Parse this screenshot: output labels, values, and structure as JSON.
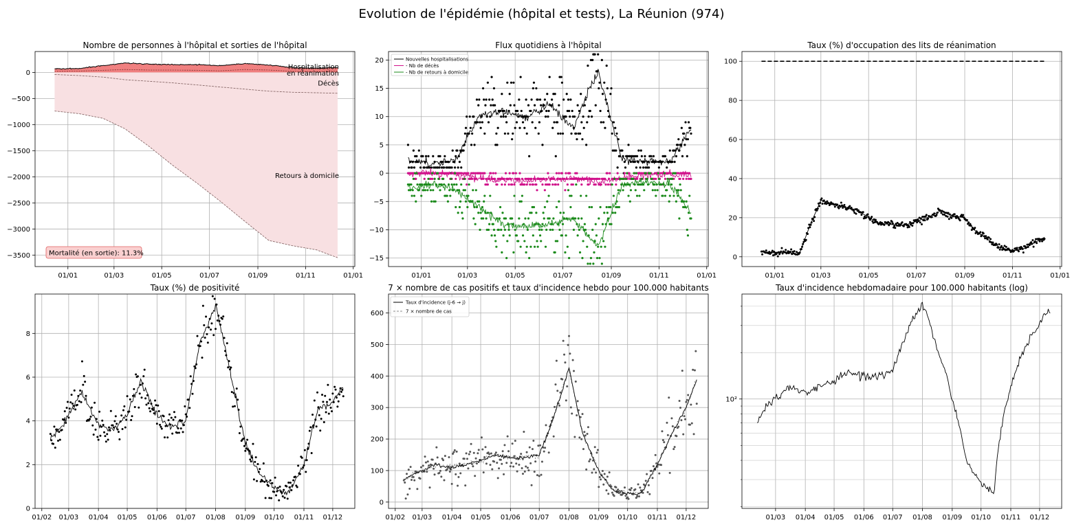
{
  "page": {
    "title": "Evolution de l'épidémie (hôpital et tests), La Réunion (974)"
  },
  "chart_data": [
    {
      "type": "area",
      "title": "Nombre de personnes à l'hôpital et sorties de l'hôpital",
      "x_ticks": [
        "01/01",
        "01/03",
        "01/05",
        "01/07",
        "01/09",
        "01/11",
        "01/01"
      ],
      "y_ticks": [
        0,
        -500,
        -1000,
        -1500,
        -2000,
        -2500,
        -3000,
        -3500
      ],
      "ylim": [
        -3720,
        400
      ],
      "annotations": [
        "Hospitalisation",
        "en réanimation",
        "Décès",
        "Retours à domicile"
      ],
      "annotation_box": "Mortalité (en sortie): 11.3%",
      "x": [
        "2020-12-15",
        "2021-01-15",
        "2021-02-15",
        "2021-03-15",
        "2021-04-15",
        "2021-05-15",
        "2021-06-15",
        "2021-07-15",
        "2021-08-15",
        "2021-09-15",
        "2021-10-15",
        "2021-11-15",
        "2021-12-12"
      ],
      "series": [
        {
          "name": "Hospitalisation",
          "values": [
            70,
            75,
            130,
            180,
            160,
            150,
            150,
            130,
            170,
            140,
            90,
            80,
            95
          ]
        },
        {
          "name": "en réanimation",
          "values": [
            20,
            25,
            40,
            55,
            45,
            45,
            40,
            30,
            55,
            45,
            20,
            15,
            25
          ]
        },
        {
          "name": "Décès",
          "values": [
            -40,
            -60,
            -90,
            -140,
            -170,
            -200,
            -240,
            -280,
            -320,
            -360,
            -380,
            -390,
            -400
          ]
        },
        {
          "name": "Retours à domicile",
          "values": [
            -740,
            -790,
            -880,
            -1080,
            -1420,
            -1780,
            -2120,
            -2470,
            -2850,
            -3220,
            -3320,
            -3400,
            -3550
          ]
        }
      ]
    },
    {
      "type": "scatter",
      "title": "Flux quotidiens à l'hôpital",
      "x_ticks": [
        "01/01",
        "01/03",
        "01/05",
        "01/07",
        "01/09",
        "01/11",
        "01/01"
      ],
      "y_ticks": [
        20,
        15,
        10,
        5,
        0,
        -5,
        -10,
        -15
      ],
      "ylim": [
        -16.5,
        21.5
      ],
      "legend": [
        "Nouvelles hospitalisations",
        "- Nb de décès",
        "- Nb de retours à domicile"
      ],
      "legend_position": "top-left",
      "x": [
        "2020-12-15",
        "2021-01-15",
        "2021-02-15",
        "2021-03-15",
        "2021-04-15",
        "2021-05-15",
        "2021-06-15",
        "2021-07-15",
        "2021-08-01",
        "2021-08-15",
        "2021-09-15",
        "2021-10-15",
        "2021-11-15",
        "2021-12-12"
      ],
      "series": [
        {
          "name": "Nouvelles hospitalisations",
          "values": [
            2.5,
            1.5,
            2.5,
            10,
            11,
            10,
            12,
            8,
            14,
            18,
            2.5,
            2,
            2,
            8
          ]
        },
        {
          "name": "- Nb de décès",
          "values": [
            0,
            0,
            -0.3,
            -0.8,
            -1.2,
            -1.5,
            -1.2,
            -1,
            -1.2,
            -1.5,
            -0.8,
            -0.3,
            -0.2,
            -0.5
          ]
        },
        {
          "name": "- Nb de retours à domicile",
          "values": [
            -2.5,
            -2,
            -3,
            -6,
            -9,
            -9.5,
            -9,
            -8,
            -11,
            -13,
            -2,
            -1.5,
            -2,
            -7
          ]
        }
      ]
    },
    {
      "type": "line",
      "title": "Taux (%) d'occupation des lits de réanimation",
      "x_ticks": [
        "01/01",
        "01/03",
        "01/05",
        "01/07",
        "01/09",
        "01/11",
        "01/01"
      ],
      "y_ticks": [
        100,
        80,
        60,
        40,
        20,
        0
      ],
      "ylim": [
        -5,
        105
      ],
      "reference_line": 100,
      "x": [
        "2020-12-15",
        "2021-01-01",
        "2021-01-15",
        "2021-02-01",
        "2021-02-15",
        "2021-03-01",
        "2021-03-15",
        "2021-04-15",
        "2021-05-15",
        "2021-06-15",
        "2021-07-15",
        "2021-08-01",
        "2021-08-15",
        "2021-09-01",
        "2021-09-15",
        "2021-10-15",
        "2021-11-01",
        "2021-11-15",
        "2021-12-12"
      ],
      "values": [
        2.5,
        2,
        2.5,
        1,
        16,
        29,
        27,
        24,
        17,
        16,
        20,
        23.5,
        21,
        20,
        13,
        5,
        3,
        4,
        10
      ]
    },
    {
      "type": "scatter",
      "title": "Taux (%) de positivité",
      "x_ticks": [
        "01/02",
        "01/03",
        "01/04",
        "01/05",
        "01/06",
        "01/07",
        "01/08",
        "01/09",
        "01/10",
        "01/11",
        "01/12"
      ],
      "y_ticks": [
        8,
        6,
        4,
        2,
        0
      ],
      "ylim": [
        0,
        9.8
      ],
      "x": [
        "2021-02-10",
        "2021-02-20",
        "2021-03-01",
        "2021-03-15",
        "2021-04-01",
        "2021-04-15",
        "2021-05-01",
        "2021-05-15",
        "2021-06-01",
        "2021-06-15",
        "2021-07-01",
        "2021-07-15",
        "2021-08-01",
        "2021-08-15",
        "2021-09-01",
        "2021-09-15",
        "2021-10-01",
        "2021-10-15",
        "2021-11-01",
        "2021-11-15",
        "2021-12-01",
        "2021-12-12"
      ],
      "values": [
        3.2,
        3.6,
        4.3,
        5.3,
        3.8,
        3.6,
        4.3,
        5.8,
        4.3,
        3.7,
        4.0,
        7.5,
        9.3,
        6.5,
        3.0,
        1.6,
        0.9,
        0.7,
        1.9,
        4.5,
        4.9,
        5.5
      ]
    },
    {
      "type": "scatter",
      "title": "7 × nombre de cas positifs et taux d'incidence hebdo pour 100.000 habitants",
      "x_ticks": [
        "01/02",
        "01/03",
        "01/04",
        "01/05",
        "01/06",
        "01/07",
        "01/08",
        "01/09",
        "01/10",
        "01/11",
        "01/12"
      ],
      "y_ticks": [
        600,
        500,
        400,
        300,
        200,
        100,
        0
      ],
      "ylim": [
        -20,
        660
      ],
      "legend": [
        "Taux d'incidence (j-6 → j)",
        "7 × nombre de cas"
      ],
      "legend_position": "top-left",
      "x": [
        "2021-02-10",
        "2021-02-20",
        "2021-03-01",
        "2021-03-15",
        "2021-04-01",
        "2021-04-15",
        "2021-05-01",
        "2021-05-15",
        "2021-06-01",
        "2021-06-15",
        "2021-07-01",
        "2021-07-15",
        "2021-08-01",
        "2021-08-15",
        "2021-09-01",
        "2021-09-15",
        "2021-10-01",
        "2021-10-15",
        "2021-11-01",
        "2021-11-15",
        "2021-12-01",
        "2021-12-12"
      ],
      "values": [
        70,
        90,
        100,
        120,
        110,
        120,
        130,
        150,
        140,
        140,
        150,
        260,
        425,
        220,
        100,
        40,
        28,
        25,
        120,
        210,
        300,
        390
      ]
    },
    {
      "type": "line",
      "title": "Taux d'incidence hebdomadaire pour 100.000 habitants (log)",
      "x_ticks": [
        "01/03",
        "01/04",
        "01/05",
        "01/06",
        "01/07",
        "01/08",
        "01/09",
        "01/10",
        "01/11",
        "01/12"
      ],
      "y_ticks": [
        "10²"
      ],
      "y_scale": "log",
      "ylim": [
        19.5,
        480
      ],
      "x": [
        "2021-02-10",
        "2021-02-20",
        "2021-03-01",
        "2021-03-15",
        "2021-04-01",
        "2021-04-15",
        "2021-05-01",
        "2021-05-15",
        "2021-06-01",
        "2021-06-15",
        "2021-07-01",
        "2021-07-15",
        "2021-08-01",
        "2021-08-15",
        "2021-09-01",
        "2021-09-15",
        "2021-10-01",
        "2021-10-15",
        "2021-11-01",
        "2021-11-15",
        "2021-12-01",
        "2021-12-12"
      ],
      "values": [
        70,
        90,
        100,
        120,
        110,
        120,
        130,
        150,
        140,
        140,
        150,
        260,
        425,
        220,
        100,
        40,
        28,
        25,
        120,
        210,
        300,
        390
      ]
    }
  ]
}
